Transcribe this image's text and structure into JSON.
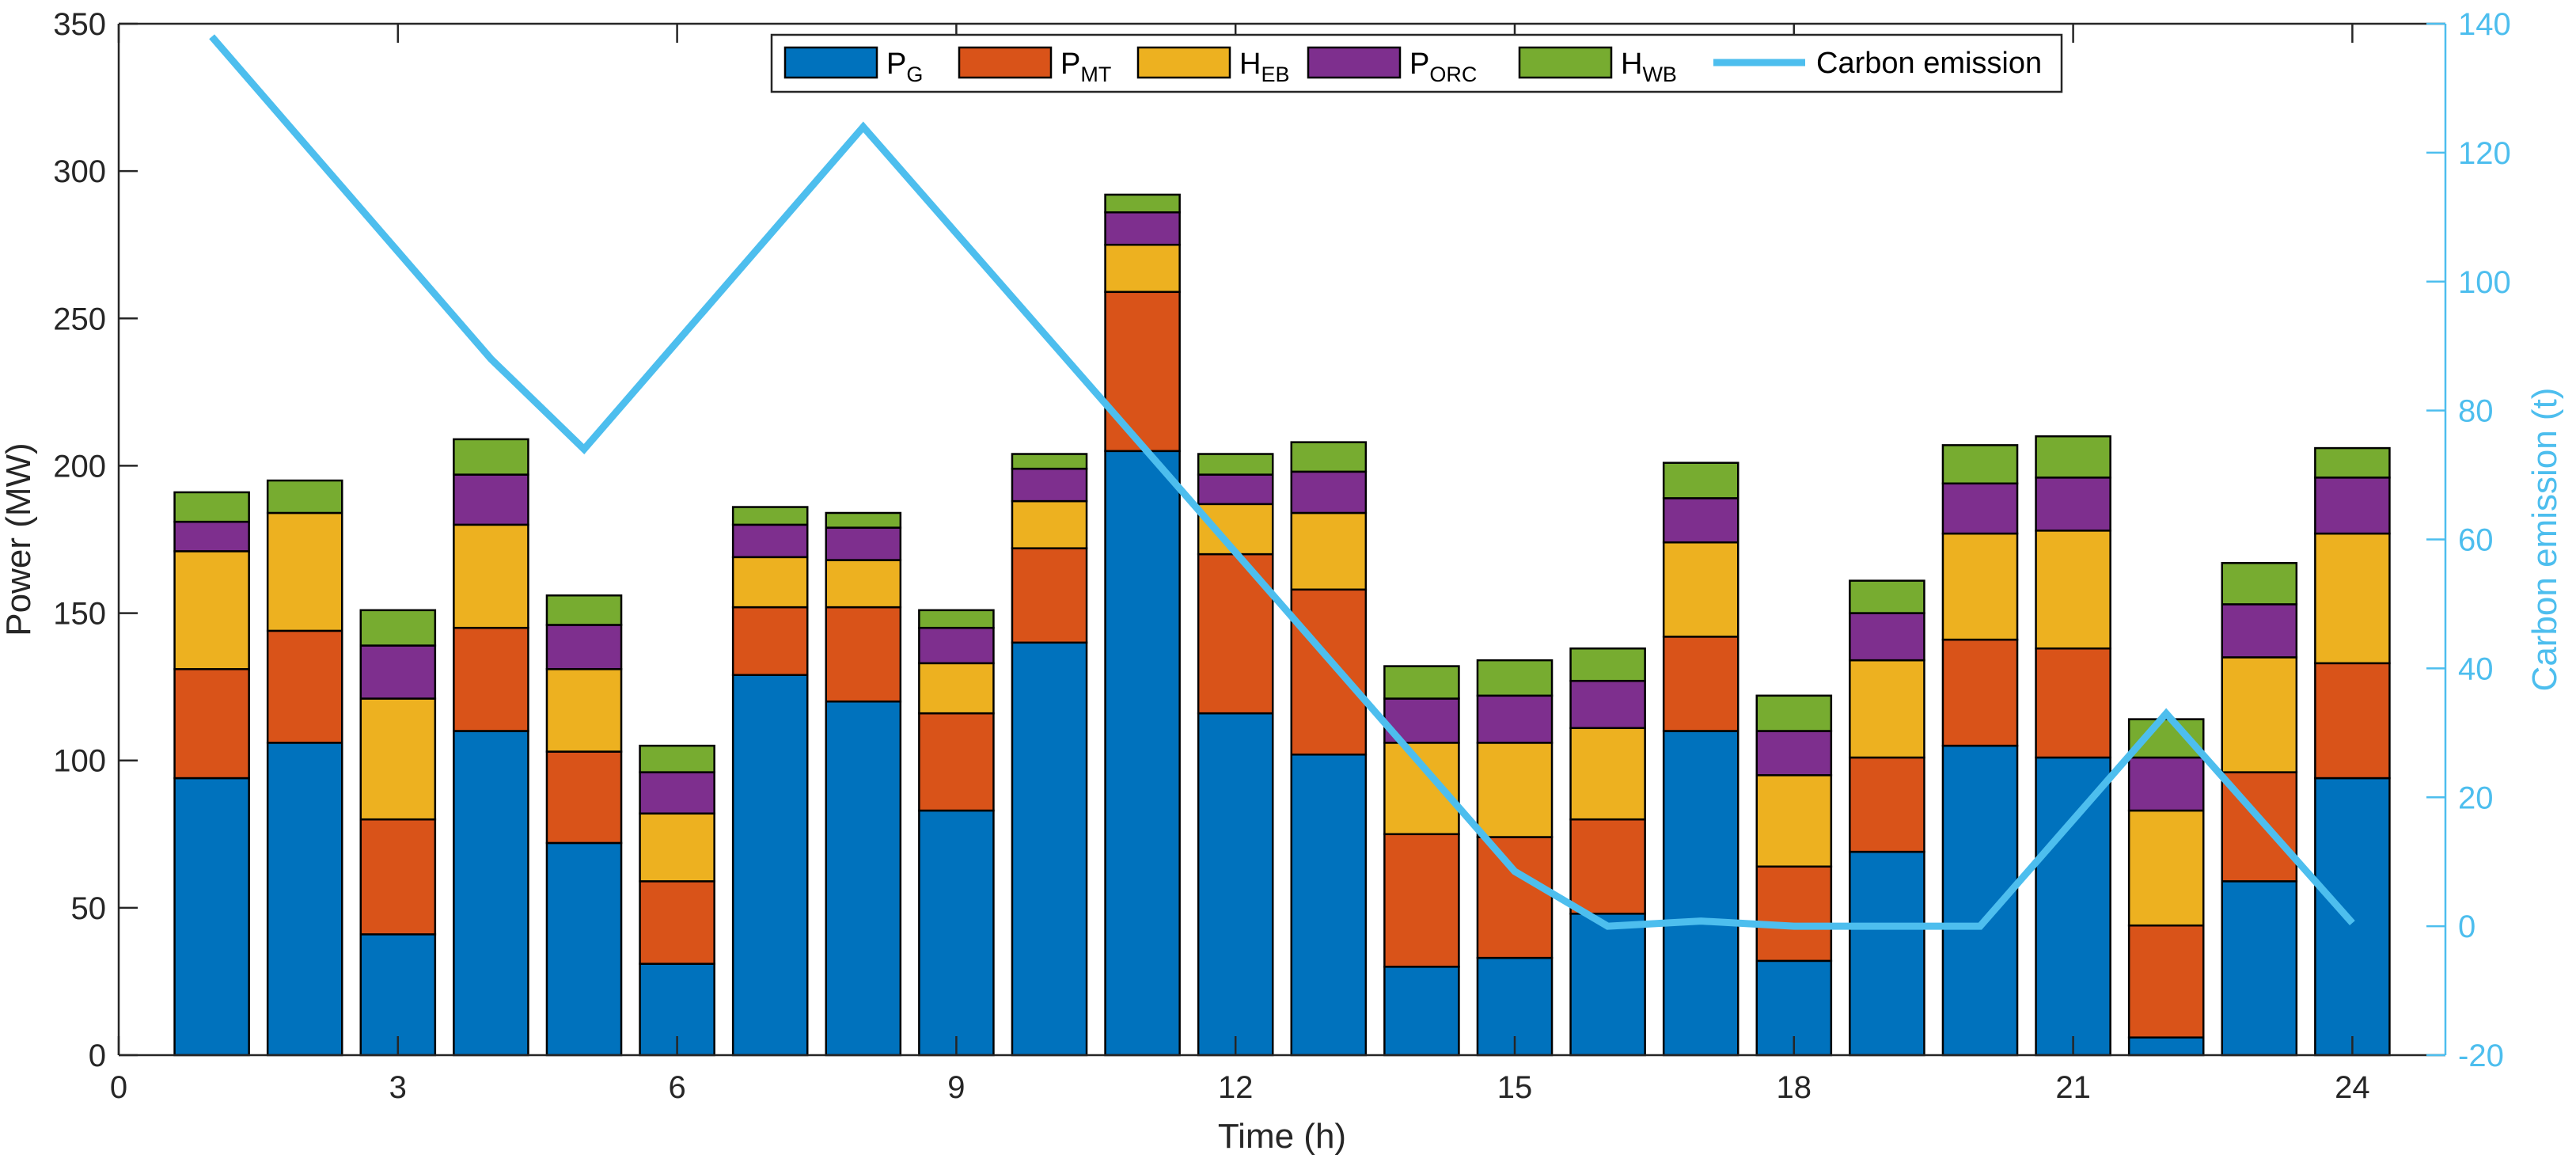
{
  "chart_data": {
    "type": "bar",
    "stacked": true,
    "xlabel": "Time (h)",
    "ylabel": "Power (MW)",
    "y2label": "Carbon emission (t)",
    "xlim": [
      0,
      25
    ],
    "ylim": [
      0,
      350
    ],
    "y2lim": [
      -20,
      140
    ],
    "xticks": [
      0,
      3,
      6,
      9,
      12,
      15,
      18,
      21,
      24
    ],
    "yticks": [
      0,
      50,
      100,
      150,
      200,
      250,
      300,
      350
    ],
    "y2ticks": [
      -20,
      0,
      20,
      40,
      60,
      80,
      100,
      120,
      140
    ],
    "x": [
      1,
      2,
      3,
      4,
      5,
      6,
      7,
      8,
      9,
      10,
      11,
      12,
      13,
      14,
      15,
      16,
      17,
      18,
      19,
      20,
      21,
      22,
      23,
      24
    ],
    "series": [
      {
        "name": "P",
        "sub": "G",
        "color": "#0072BD",
        "values": [
          94,
          106,
          41,
          110,
          72,
          31,
          129,
          120,
          83,
          140,
          205,
          116,
          102,
          30,
          33,
          48,
          110,
          32,
          69,
          105,
          101,
          6,
          59,
          94
        ]
      },
      {
        "name": "P",
        "sub": "MT",
        "color": "#D95319",
        "values": [
          37,
          38,
          39,
          35,
          31,
          28,
          23,
          32,
          33,
          32,
          54,
          54,
          56,
          45,
          41,
          32,
          32,
          32,
          32,
          36,
          37,
          38,
          37,
          39
        ]
      },
      {
        "name": "H",
        "sub": "EB",
        "color": "#EDB120",
        "values": [
          40,
          40,
          41,
          35,
          28,
          23,
          17,
          16,
          17,
          16,
          16,
          17,
          26,
          31,
          32,
          31,
          32,
          31,
          33,
          36,
          40,
          39,
          39,
          44
        ]
      },
      {
        "name": "P",
        "sub": "ORC",
        "color": "#7E2F8E",
        "values": [
          10,
          0,
          18,
          17,
          15,
          14,
          11,
          11,
          12,
          11,
          11,
          10,
          14,
          15,
          16,
          16,
          15,
          15,
          16,
          17,
          18,
          18,
          18,
          19
        ]
      },
      {
        "name": "H",
        "sub": "WB",
        "color": "#77AC30",
        "values": [
          10,
          11,
          12,
          12,
          10,
          9,
          6,
          5,
          6,
          5,
          6,
          7,
          10,
          11,
          12,
          11,
          12,
          12,
          11,
          13,
          14,
          13,
          14,
          10
        ]
      }
    ],
    "line": {
      "name": "Carbon emission",
      "color": "#4DBEEE",
      "axis": "right",
      "values": [
        138,
        null,
        null,
        88,
        74,
        null,
        null,
        124,
        null,
        null,
        null,
        null,
        null,
        null,
        8.5,
        0,
        0.8,
        0,
        0,
        0,
        null,
        33,
        null,
        0.5
      ]
    },
    "legend_position": "top-center"
  }
}
